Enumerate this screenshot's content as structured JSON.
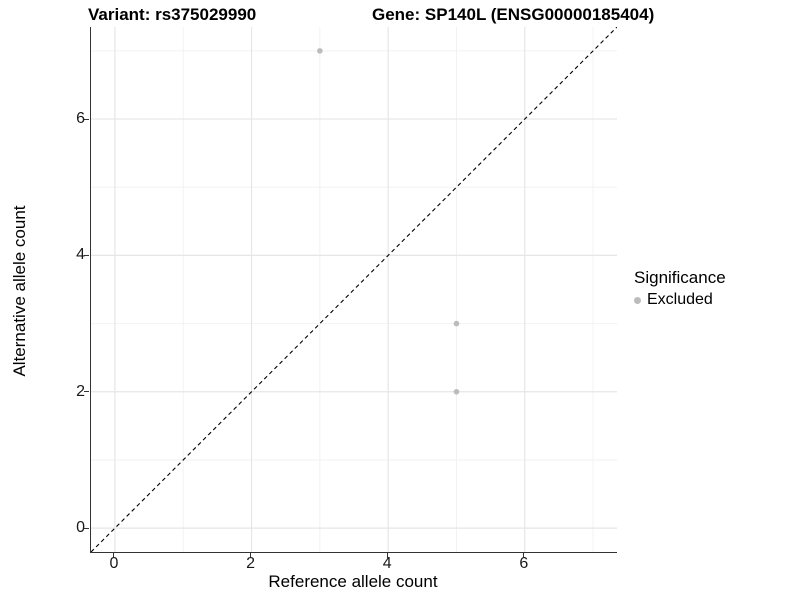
{
  "header": {
    "variant_title": "Variant: rs375029990",
    "gene_title": "Gene: SP140L (ENSG00000185404)"
  },
  "chart_data": {
    "type": "scatter",
    "xlabel": "Reference allele count",
    "ylabel": "Alternative allele count",
    "xlim": [
      -0.35,
      7.35
    ],
    "ylim": [
      -0.35,
      7.35
    ],
    "x_major_ticks": [
      0,
      2,
      4,
      6
    ],
    "y_major_ticks": [
      0,
      2,
      4,
      6
    ],
    "x_minor_gridlines": [
      1,
      3,
      5,
      7
    ],
    "y_minor_gridlines": [
      1,
      3,
      5,
      7
    ],
    "grid": "major+minor",
    "series": [
      {
        "name": "Excluded",
        "marker": "circle",
        "color": "#bcbcbc",
        "points": [
          [
            3,
            7
          ],
          [
            5,
            3
          ],
          [
            5,
            2
          ]
        ]
      }
    ],
    "reference_line": {
      "type": "identity",
      "style": "dashed",
      "color": "#000000",
      "from": [
        -0.35,
        -0.35
      ],
      "to": [
        7.35,
        7.35
      ]
    },
    "legend": {
      "position": "right",
      "title": "Significance",
      "items": [
        {
          "label": "Excluded",
          "color": "#bcbcbc"
        }
      ]
    },
    "colors": {
      "major_grid": "#e6e6e6",
      "minor_grid": "#f2f2f2",
      "axis_line": "#333333",
      "tick_mark": "#333333"
    }
  }
}
